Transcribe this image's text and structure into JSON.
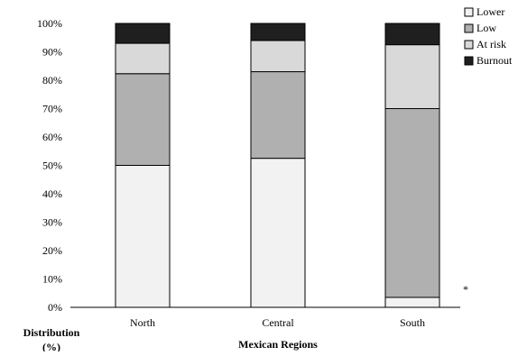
{
  "chart_data": {
    "type": "bar",
    "stacked": true,
    "categories": [
      "North",
      "Central",
      "South"
    ],
    "series": [
      {
        "name": "Lower",
        "values": [
          50,
          52.5,
          3.5
        ],
        "color": "#f2f2f2"
      },
      {
        "name": "Low",
        "values": [
          32.3,
          30.5,
          66.5
        ],
        "color": "#b0b0b0"
      },
      {
        "name": "At risk",
        "values": [
          10.7,
          11,
          22.5
        ],
        "color": "#d9d9d9"
      },
      {
        "name": "Burnout",
        "values": [
          7,
          6,
          7.5
        ],
        "color": "#1f1f1f"
      }
    ],
    "ylim": [
      0,
      100
    ],
    "yticks": [
      "0%",
      "10%",
      "20%",
      "30%",
      "40%",
      "50%",
      "60%",
      "70%",
      "80%",
      "90%",
      "100%"
    ],
    "xlabel": "Mexican Regions",
    "ylabel": "Distribution (%)",
    "annotation": "*",
    "legend_position": "top-right",
    "grid": false
  }
}
